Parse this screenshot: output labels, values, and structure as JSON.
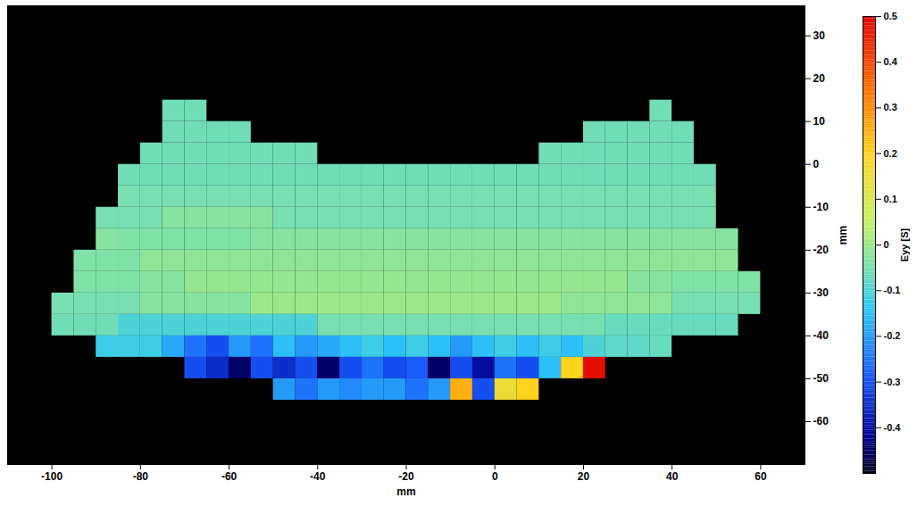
{
  "chart_data": {
    "type": "heatmap",
    "x": [
      -97.5,
      -92.5,
      -87.5,
      -82.5,
      -77.5,
      -72.5,
      -67.5,
      -62.5,
      -57.5,
      -52.5,
      -47.5,
      -42.5,
      -37.5,
      -32.5,
      -27.5,
      -22.5,
      -17.5,
      -12.5,
      -7.5,
      -2.5,
      2.5,
      7.5,
      12.5,
      17.5,
      22.5,
      27.5,
      32.5,
      37.5,
      42.5,
      47.5,
      52.5,
      57.5
    ],
    "y": [
      12.5,
      7.5,
      2.5,
      -2.5,
      -7.5,
      -12.5,
      -17.5,
      -22.5,
      -27.5,
      -32.5,
      -37.5,
      -42.5,
      -47.5,
      -52.5
    ],
    "values": [
      [
        null,
        null,
        null,
        null,
        null,
        -0.06,
        -0.06,
        null,
        null,
        null,
        null,
        null,
        null,
        null,
        null,
        null,
        null,
        null,
        null,
        null,
        null,
        null,
        null,
        null,
        null,
        null,
        null,
        -0.06,
        null,
        null,
        null,
        null
      ],
      [
        null,
        null,
        null,
        null,
        null,
        -0.06,
        -0.06,
        -0.06,
        -0.06,
        null,
        null,
        null,
        null,
        null,
        null,
        null,
        null,
        null,
        null,
        null,
        null,
        null,
        null,
        null,
        -0.06,
        -0.06,
        -0.06,
        -0.06,
        -0.06,
        null,
        null,
        null
      ],
      [
        null,
        null,
        null,
        null,
        -0.06,
        -0.06,
        -0.06,
        -0.06,
        -0.06,
        -0.06,
        -0.06,
        -0.06,
        null,
        null,
        null,
        null,
        null,
        null,
        null,
        null,
        null,
        null,
        -0.06,
        -0.06,
        -0.06,
        -0.06,
        -0.06,
        -0.06,
        -0.06,
        null,
        null,
        null
      ],
      [
        null,
        null,
        null,
        -0.06,
        -0.06,
        -0.06,
        -0.06,
        -0.06,
        -0.06,
        -0.06,
        -0.06,
        -0.06,
        -0.06,
        -0.06,
        -0.06,
        -0.06,
        -0.06,
        -0.06,
        -0.06,
        -0.06,
        -0.06,
        -0.06,
        -0.06,
        -0.06,
        -0.06,
        -0.06,
        -0.06,
        -0.06,
        -0.06,
        -0.06,
        null,
        null
      ],
      [
        null,
        null,
        null,
        -0.05,
        -0.05,
        -0.05,
        -0.05,
        -0.05,
        -0.05,
        -0.05,
        -0.05,
        -0.05,
        -0.05,
        -0.05,
        -0.05,
        -0.05,
        -0.05,
        -0.05,
        -0.05,
        -0.05,
        -0.05,
        -0.05,
        -0.05,
        -0.05,
        -0.05,
        -0.05,
        -0.05,
        -0.05,
        -0.05,
        -0.05,
        null,
        null
      ],
      [
        null,
        null,
        -0.05,
        -0.05,
        -0.05,
        -0.03,
        -0.03,
        -0.03,
        -0.03,
        -0.03,
        -0.05,
        -0.05,
        -0.05,
        -0.05,
        -0.05,
        -0.05,
        -0.05,
        -0.05,
        -0.05,
        -0.05,
        -0.05,
        -0.05,
        -0.05,
        -0.05,
        -0.05,
        -0.05,
        -0.05,
        -0.05,
        -0.05,
        -0.05,
        null,
        null
      ],
      [
        null,
        null,
        -0.03,
        -0.04,
        -0.04,
        -0.04,
        -0.04,
        -0.04,
        -0.04,
        -0.03,
        -0.03,
        -0.03,
        -0.03,
        -0.03,
        -0.03,
        -0.03,
        -0.03,
        -0.03,
        -0.03,
        -0.03,
        -0.03,
        -0.03,
        -0.03,
        -0.03,
        -0.03,
        -0.03,
        -0.03,
        -0.03,
        -0.03,
        -0.03,
        -0.03,
        null
      ],
      [
        null,
        -0.04,
        -0.04,
        -0.04,
        -0.02,
        -0.02,
        -0.02,
        -0.02,
        -0.02,
        -0.02,
        -0.02,
        -0.02,
        -0.02,
        -0.02,
        -0.02,
        -0.02,
        -0.02,
        -0.02,
        -0.02,
        -0.02,
        -0.02,
        -0.02,
        -0.02,
        -0.02,
        -0.02,
        -0.02,
        -0.02,
        -0.02,
        -0.02,
        -0.02,
        -0.02,
        null
      ],
      [
        null,
        -0.04,
        -0.04,
        -0.04,
        -0.03,
        -0.03,
        -0.01,
        -0.01,
        -0.01,
        -0.01,
        -0.01,
        -0.01,
        -0.01,
        -0.01,
        -0.01,
        -0.01,
        -0.01,
        -0.01,
        -0.01,
        -0.01,
        -0.01,
        -0.01,
        -0.01,
        -0.01,
        -0.01,
        -0.01,
        -0.03,
        -0.03,
        -0.04,
        -0.04,
        -0.04,
        -0.04
      ],
      [
        -0.05,
        -0.05,
        -0.05,
        -0.05,
        -0.03,
        -0.03,
        -0.03,
        -0.03,
        -0.03,
        0.0,
        0.0,
        0.0,
        0.0,
        0.0,
        0.0,
        0.0,
        0.0,
        0.0,
        0.0,
        0.0,
        0.0,
        0.0,
        0.0,
        -0.02,
        -0.02,
        -0.02,
        -0.02,
        -0.02,
        -0.05,
        -0.05,
        -0.05,
        -0.05
      ],
      [
        -0.06,
        -0.06,
        -0.06,
        -0.1,
        -0.1,
        -0.1,
        -0.1,
        -0.1,
        -0.1,
        -0.1,
        -0.1,
        -0.1,
        -0.05,
        -0.05,
        -0.05,
        -0.05,
        -0.05,
        -0.05,
        -0.05,
        -0.05,
        -0.05,
        -0.05,
        -0.05,
        -0.05,
        -0.05,
        -0.07,
        -0.07,
        -0.07,
        -0.07,
        -0.07,
        -0.07,
        null
      ],
      [
        null,
        null,
        -0.12,
        -0.12,
        -0.12,
        -0.18,
        -0.25,
        -0.3,
        -0.2,
        -0.25,
        -0.15,
        -0.2,
        -0.18,
        -0.15,
        -0.12,
        -0.15,
        -0.12,
        -0.15,
        -0.2,
        -0.15,
        -0.12,
        -0.15,
        -0.12,
        -0.15,
        -0.1,
        -0.08,
        -0.08,
        -0.07,
        null,
        null,
        null,
        null
      ],
      [
        null,
        null,
        null,
        null,
        null,
        null,
        -0.3,
        -0.35,
        -0.45,
        -0.3,
        -0.35,
        -0.3,
        -0.45,
        -0.3,
        -0.25,
        -0.3,
        -0.28,
        -0.45,
        -0.3,
        -0.4,
        -0.25,
        -0.3,
        -0.15,
        0.2,
        0.48,
        null,
        null,
        null,
        null,
        null,
        null,
        null
      ],
      [
        null,
        null,
        null,
        null,
        null,
        null,
        null,
        null,
        null,
        null,
        -0.2,
        -0.25,
        -0.2,
        -0.22,
        -0.2,
        -0.2,
        -0.25,
        -0.2,
        0.25,
        -0.3,
        0.15,
        0.2,
        null,
        null,
        null,
        null,
        null,
        null,
        null,
        null,
        null,
        null
      ]
    ],
    "xlim": [
      -110,
      70
    ],
    "ylim": [
      -70,
      37
    ],
    "xticks": [
      -100,
      -80,
      -60,
      -40,
      -20,
      0,
      20,
      40,
      60
    ],
    "yticks": [
      -60,
      -50,
      -40,
      -30,
      -20,
      -10,
      0,
      10,
      20,
      30
    ],
    "x_label": "mm",
    "y_label": "mm",
    "colorbar": {
      "label": "Eyy [S]",
      "range": [
        -0.5,
        0.5
      ],
      "ticks": [
        -0.4,
        -0.3,
        -0.2,
        -0.1,
        0,
        0.1,
        0.2,
        0.3,
        0.4,
        0.5
      ]
    }
  }
}
